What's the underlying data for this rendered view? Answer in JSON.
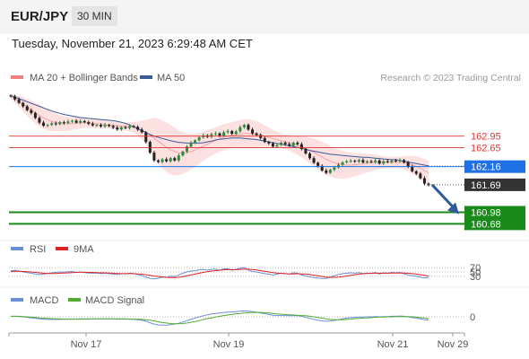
{
  "header": {
    "symbol": "EUR/JPY",
    "interval": "30 MIN",
    "timestamp": "Tuesday, November 21, 2023 6:29:48 AM CET"
  },
  "credit": "Research © 2023 Trading Central",
  "colors": {
    "price_up": "#2e8b3e",
    "price_down": "#222222",
    "bollinger": "#f08080",
    "ma50": "#3a5a98",
    "resistance": "#d33",
    "pivot": "#1f6fe5",
    "support": "#1a8a1a",
    "arrow": "#2f5a9b",
    "rsi": "#6b8fd6",
    "rsi_ma": "#d22",
    "macd": "#6b8fd6",
    "macd_signal": "#55aa33"
  },
  "chart_data": [
    {
      "type": "line",
      "title": "EUR/JPY price (candlestick) with MA 20 + Bollinger Bands and MA 50",
      "legend": [
        "MA 20 + Bollinger Bands",
        "MA 50"
      ],
      "x_ticks": [
        "Nov 17",
        "Nov 19",
        "Nov 21",
        "Nov 29"
      ],
      "ylim": [
        160.55,
        164.15
      ],
      "grid": false,
      "close": [
        163.98,
        163.9,
        163.81,
        163.72,
        163.62,
        163.55,
        163.42,
        163.3,
        163.22,
        163.24,
        163.28,
        163.26,
        163.31,
        163.29,
        163.33,
        163.35,
        163.3,
        163.34,
        163.31,
        163.27,
        163.23,
        163.24,
        163.2,
        163.24,
        163.21,
        163.17,
        163.12,
        163.18,
        163.16,
        163.21,
        163.19,
        163.12,
        163.05,
        162.8,
        162.52,
        162.32,
        162.28,
        162.35,
        162.3,
        162.38,
        162.32,
        162.45,
        162.55,
        162.68,
        162.78,
        162.84,
        162.92,
        162.97,
        162.93,
        163.0,
        163.02,
        162.96,
        163.05,
        163.08,
        163.01,
        163.07,
        163.18,
        163.24,
        163.12,
        163.02,
        162.98,
        162.9,
        162.8,
        162.76,
        162.68,
        162.72,
        162.78,
        162.74,
        162.7,
        162.78,
        162.74,
        162.62,
        162.5,
        162.38,
        162.26,
        162.18,
        162.06,
        162.0,
        162.08,
        162.14,
        162.21,
        162.27,
        162.3,
        162.31,
        162.29,
        162.33,
        162.27,
        162.3,
        162.28,
        162.32,
        162.24,
        162.3,
        162.28,
        162.32,
        162.3,
        162.33,
        162.27,
        162.16,
        162.04,
        161.98,
        161.86,
        161.72,
        161.68
      ],
      "ma50": [
        164.0,
        163.96,
        163.92,
        163.88,
        163.84,
        163.8,
        163.76,
        163.72,
        163.68,
        163.64,
        163.6,
        163.57,
        163.54,
        163.51,
        163.49,
        163.47,
        163.45,
        163.43,
        163.42,
        163.41,
        163.4,
        163.39,
        163.38,
        163.37,
        163.36,
        163.35,
        163.33,
        163.31,
        163.28,
        163.24,
        163.19,
        163.14,
        163.09,
        163.04,
        162.99,
        162.95,
        162.92,
        162.89,
        162.86,
        162.83,
        162.81,
        162.79,
        162.78,
        162.77,
        162.77,
        162.77,
        162.77,
        162.78,
        162.8,
        162.82,
        162.85,
        162.87,
        162.88,
        162.89,
        162.9,
        162.9,
        162.9,
        162.89,
        162.88,
        162.87,
        162.86,
        162.84,
        162.82,
        162.8,
        162.78,
        162.76,
        162.74,
        162.72,
        162.7,
        162.68,
        162.66,
        162.63,
        162.61,
        162.58,
        162.56,
        162.54,
        162.52,
        162.5,
        162.48,
        162.47,
        162.46,
        162.45,
        162.44,
        162.43,
        162.42,
        162.41,
        162.4,
        162.4,
        162.39,
        162.38,
        162.37,
        162.36,
        162.35,
        162.34,
        162.34,
        162.32,
        162.3,
        162.28,
        162.26,
        162.24,
        162.22,
        162.2,
        162.18
      ],
      "ma20": [
        163.98,
        163.92,
        163.85,
        163.78,
        163.7,
        163.62,
        163.55,
        163.48,
        163.42,
        163.37,
        163.33,
        163.3,
        163.28,
        163.27,
        163.27,
        163.28,
        163.29,
        163.3,
        163.3,
        163.29,
        163.28,
        163.27,
        163.26,
        163.25,
        163.24,
        163.23,
        163.22,
        163.21,
        163.2,
        163.19,
        163.18,
        163.15,
        163.11,
        163.05,
        162.98,
        162.9,
        162.82,
        162.74,
        162.66,
        162.6,
        162.55,
        162.52,
        162.51,
        162.52,
        162.55,
        162.59,
        162.64,
        162.69,
        162.74,
        162.79,
        162.84,
        162.88,
        162.92,
        162.95,
        162.97,
        162.99,
        163.01,
        163.02,
        163.02,
        163.01,
        163.0,
        162.98,
        162.95,
        162.92,
        162.89,
        162.86,
        162.83,
        162.8,
        162.77,
        162.74,
        162.71,
        162.67,
        162.63,
        162.58,
        162.53,
        162.47,
        162.41,
        162.35,
        162.3,
        162.26,
        162.23,
        162.21,
        162.2,
        162.2,
        162.21,
        162.22,
        162.24,
        162.25,
        162.26,
        162.27,
        162.27,
        162.27,
        162.27,
        162.27,
        162.27,
        162.27,
        162.26,
        162.24,
        162.21,
        162.17,
        162.12,
        162.06,
        162.0
      ],
      "bb_width": [
        0.06,
        0.1,
        0.14,
        0.18,
        0.22,
        0.25,
        0.27,
        0.28,
        0.28,
        0.27,
        0.25,
        0.23,
        0.21,
        0.19,
        0.18,
        0.17,
        0.16,
        0.15,
        0.14,
        0.13,
        0.12,
        0.11,
        0.11,
        0.1,
        0.1,
        0.1,
        0.1,
        0.1,
        0.11,
        0.12,
        0.14,
        0.18,
        0.24,
        0.32,
        0.42,
        0.52,
        0.58,
        0.62,
        0.64,
        0.64,
        0.62,
        0.58,
        0.54,
        0.5,
        0.46,
        0.42,
        0.4,
        0.38,
        0.36,
        0.35,
        0.34,
        0.34,
        0.34,
        0.34,
        0.34,
        0.35,
        0.36,
        0.37,
        0.37,
        0.36,
        0.34,
        0.31,
        0.28,
        0.25,
        0.22,
        0.2,
        0.19,
        0.19,
        0.2,
        0.22,
        0.24,
        0.27,
        0.3,
        0.33,
        0.36,
        0.38,
        0.39,
        0.4,
        0.4,
        0.39,
        0.38,
        0.36,
        0.34,
        0.32,
        0.3,
        0.28,
        0.26,
        0.24,
        0.22,
        0.2,
        0.18,
        0.16,
        0.15,
        0.14,
        0.14,
        0.15,
        0.17,
        0.2,
        0.23,
        0.26,
        0.28,
        0.3,
        0.31
      ],
      "levels": [
        {
          "label": "162.95",
          "value": 162.95,
          "kind": "resistance"
        },
        {
          "label": "162.65",
          "value": 162.65,
          "kind": "resistance"
        },
        {
          "label": "162.16",
          "value": 162.16,
          "kind": "pivot"
        },
        {
          "label": "161.69",
          "value": 161.69,
          "kind": "last"
        },
        {
          "label": "160.98",
          "value": 160.98,
          "kind": "support"
        },
        {
          "label": "160.68",
          "value": 160.68,
          "kind": "support"
        }
      ],
      "forecast_arrow": {
        "from": 161.69,
        "to": 160.98
      }
    },
    {
      "type": "line",
      "title": "RSI",
      "legend": [
        "RSI",
        "9MA"
      ],
      "ylim": [
        0,
        100
      ],
      "ticks": [
        "70",
        "50",
        "30"
      ],
      "series": [
        {
          "name": "RSI",
          "values": [
            55,
            58,
            54,
            50,
            47,
            44,
            40,
            38,
            40,
            43,
            46,
            48,
            50,
            49,
            51,
            52,
            48,
            50,
            47,
            45,
            44,
            45,
            42,
            44,
            42,
            40,
            38,
            42,
            41,
            44,
            42,
            38,
            34,
            26,
            20,
            18,
            21,
            26,
            24,
            30,
            28,
            36,
            44,
            50,
            54,
            56,
            60,
            62,
            58,
            62,
            63,
            58,
            64,
            65,
            58,
            62,
            68,
            70,
            58,
            52,
            50,
            46,
            42,
            40,
            36,
            40,
            44,
            42,
            40,
            46,
            44,
            36,
            31,
            27,
            24,
            22,
            20,
            20,
            26,
            32,
            38,
            42,
            44,
            46,
            44,
            47,
            42,
            45,
            43,
            47,
            40,
            46,
            44,
            48,
            46,
            48,
            42,
            36,
            32,
            30,
            26,
            22,
            24
          ]
        },
        {
          "name": "9MA",
          "values": [
            52,
            53,
            53,
            52,
            51,
            50,
            48,
            46,
            44,
            43,
            43,
            43,
            44,
            45,
            46,
            47,
            48,
            49,
            49,
            48,
            48,
            47,
            46,
            46,
            45,
            44,
            43,
            42,
            42,
            42,
            42,
            41,
            40,
            37,
            34,
            31,
            29,
            27,
            25,
            24,
            24,
            25,
            28,
            32,
            36,
            40,
            44,
            48,
            51,
            54,
            56,
            58,
            60,
            61,
            61,
            61,
            62,
            63,
            63,
            61,
            59,
            56,
            53,
            50,
            47,
            45,
            43,
            42,
            41,
            41,
            42,
            41,
            40,
            38,
            35,
            32,
            29,
            26,
            25,
            25,
            26,
            28,
            31,
            34,
            37,
            40,
            42,
            43,
            44,
            44,
            44,
            44,
            44,
            45,
            45,
            45,
            45,
            44,
            42,
            40,
            37,
            34,
            31
          ]
        }
      ]
    },
    {
      "type": "line",
      "title": "MACD",
      "legend": [
        "MACD",
        "MACD Signal"
      ],
      "ylim": [
        -0.45,
        0.45
      ],
      "ticks": [
        "0"
      ],
      "series": [
        {
          "name": "MACD",
          "values": [
            0.02,
            0.02,
            0.01,
            0.0,
            -0.02,
            -0.04,
            -0.06,
            -0.08,
            -0.09,
            -0.1,
            -0.1,
            -0.1,
            -0.1,
            -0.09,
            -0.09,
            -0.09,
            -0.09,
            -0.08,
            -0.08,
            -0.08,
            -0.08,
            -0.08,
            -0.08,
            -0.08,
            -0.08,
            -0.08,
            -0.09,
            -0.09,
            -0.09,
            -0.09,
            -0.1,
            -0.11,
            -0.13,
            -0.17,
            -0.23,
            -0.28,
            -0.31,
            -0.32,
            -0.32,
            -0.3,
            -0.28,
            -0.25,
            -0.2,
            -0.15,
            -0.1,
            -0.05,
            0.0,
            0.04,
            0.08,
            0.11,
            0.13,
            0.15,
            0.17,
            0.18,
            0.19,
            0.2,
            0.22,
            0.23,
            0.22,
            0.2,
            0.18,
            0.15,
            0.12,
            0.09,
            0.06,
            0.05,
            0.05,
            0.05,
            0.04,
            0.05,
            0.04,
            0.02,
            -0.02,
            -0.06,
            -0.1,
            -0.13,
            -0.16,
            -0.17,
            -0.16,
            -0.14,
            -0.11,
            -0.08,
            -0.05,
            -0.03,
            -0.02,
            -0.01,
            -0.01,
            0.0,
            0.0,
            0.01,
            0.0,
            0.01,
            0.01,
            0.02,
            0.02,
            0.03,
            0.02,
            0.0,
            -0.03,
            -0.05,
            -0.08,
            -0.11,
            -0.12
          ]
        },
        {
          "name": "MACD Signal",
          "values": [
            0.02,
            0.02,
            0.02,
            0.01,
            0.0,
            -0.01,
            -0.02,
            -0.04,
            -0.05,
            -0.06,
            -0.07,
            -0.08,
            -0.08,
            -0.09,
            -0.09,
            -0.09,
            -0.09,
            -0.09,
            -0.09,
            -0.09,
            -0.08,
            -0.08,
            -0.08,
            -0.08,
            -0.08,
            -0.08,
            -0.08,
            -0.08,
            -0.08,
            -0.09,
            -0.09,
            -0.09,
            -0.1,
            -0.11,
            -0.13,
            -0.16,
            -0.19,
            -0.22,
            -0.24,
            -0.26,
            -0.27,
            -0.27,
            -0.26,
            -0.24,
            -0.21,
            -0.18,
            -0.15,
            -0.11,
            -0.07,
            -0.04,
            -0.01,
            0.02,
            0.05,
            0.07,
            0.09,
            0.11,
            0.13,
            0.15,
            0.16,
            0.17,
            0.17,
            0.17,
            0.16,
            0.15,
            0.13,
            0.11,
            0.1,
            0.09,
            0.08,
            0.07,
            0.06,
            0.05,
            0.04,
            0.02,
            0.0,
            -0.03,
            -0.05,
            -0.08,
            -0.1,
            -0.11,
            -0.11,
            -0.11,
            -0.1,
            -0.09,
            -0.07,
            -0.06,
            -0.05,
            -0.04,
            -0.03,
            -0.02,
            -0.01,
            -0.01,
            0.0,
            0.0,
            0.01,
            0.01,
            0.01,
            0.01,
            0.0,
            -0.01,
            -0.03,
            -0.05,
            -0.07
          ]
        }
      ]
    }
  ]
}
